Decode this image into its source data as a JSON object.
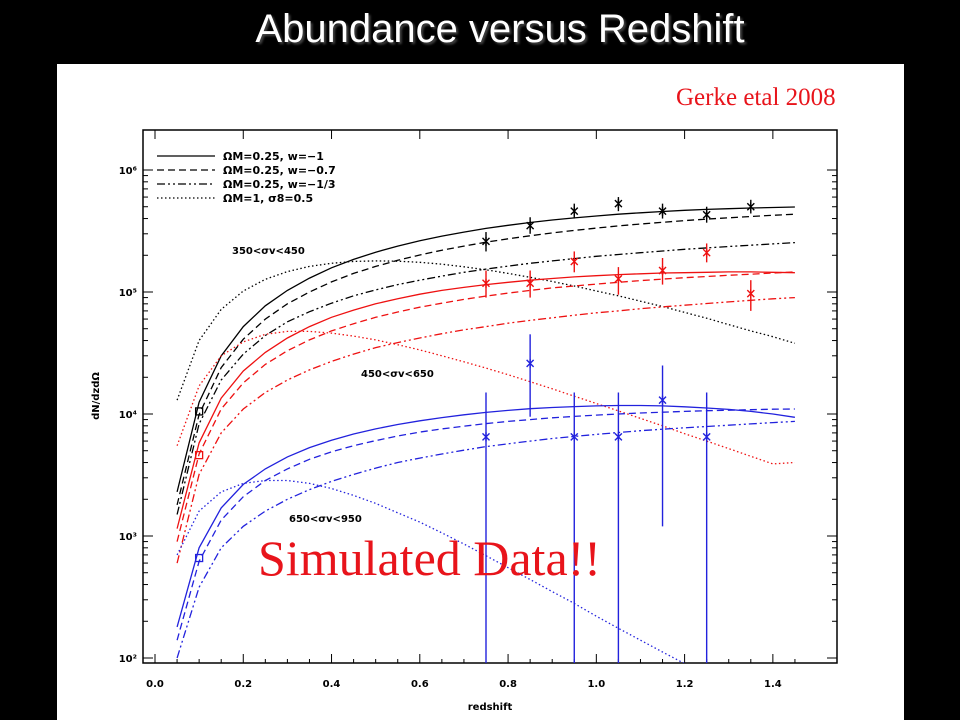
{
  "slide": {
    "title": "Abundance versus Redshift",
    "citation": "Gerke etal 2008",
    "note": "Simulated Data!!"
  },
  "chart_data": {
    "type": "line",
    "xlabel": "redshift",
    "ylabel": "dN/dzdΩ",
    "xlim": [
      0.0,
      1.5
    ],
    "ylim": [
      100,
      2000000
    ],
    "yscale": "log",
    "grid": false,
    "legend_position": "top-left",
    "x_ticks": [
      "0.0",
      "0.2",
      "0.4",
      "0.6",
      "0.8",
      "1.0",
      "1.2",
      "1.4"
    ],
    "y_ticks": [
      {
        "value": 100,
        "label": "10²"
      },
      {
        "value": 1000,
        "label": "10³"
      },
      {
        "value": 10000,
        "label": "10⁴"
      },
      {
        "value": 100000,
        "label": "10⁵"
      },
      {
        "value": 1000000,
        "label": "10⁶"
      }
    ],
    "legend": [
      {
        "dash": "solid",
        "label": "ΩM=0.25, w=−1"
      },
      {
        "dash": "dashed",
        "label": "ΩM=0.25, w=−0.7"
      },
      {
        "dash": "dashdotdot",
        "label": "ΩM=0.25, w=−1/3"
      },
      {
        "dash": "dotted",
        "label": "ΩM=1, σ8=0.5"
      }
    ],
    "x": [
      0.05,
      0.1,
      0.15,
      0.2,
      0.25,
      0.3,
      0.35,
      0.4,
      0.45,
      0.5,
      0.55,
      0.6,
      0.65,
      0.7,
      0.75,
      0.8,
      0.85,
      0.9,
      0.95,
      1.0,
      1.05,
      1.1,
      1.15,
      1.2,
      1.25,
      1.3,
      1.35,
      1.4,
      1.45
    ],
    "bins": [
      {
        "label": "350<σv<450",
        "color": "#000000",
        "curves": [
          {
            "dash": "solid",
            "y": [
              2300,
              12500,
              30000,
              52000,
              77000,
              103000,
              130000,
              158000,
              185000,
              212000,
              238000,
              263000,
              287000,
              310000,
              332000,
              352000,
              371000,
              389000,
              405000,
              420000,
              434000,
              446000,
              457000,
              467000,
              475000,
              482000,
              488000,
              493000,
              497000
            ]
          },
          {
            "dash": "dashed",
            "y": [
              1800,
              9900,
              24000,
              41000,
              60000,
              80000,
              100000,
              121000,
              142000,
              162000,
              182000,
              201000,
              220000,
              238000,
              256000,
              273000,
              289000,
              305000,
              320000,
              334000,
              348000,
              361000,
              373000,
              385000,
              396000,
              406000,
              416000,
              425000,
              434000
            ]
          },
          {
            "dash": "dashdotdot",
            "y": [
              1500,
              8300,
              19000,
              31000,
              44000,
              57000,
              69000,
              81000,
              93000,
              104000,
              115000,
              125000,
              135000,
              145000,
              154000,
              163000,
              172000,
              180000,
              188000,
              196000,
              203000,
              210000,
              217000,
              224000,
              230000,
              236000,
              242000,
              248000,
              254000
            ]
          },
          {
            "dash": "dotted",
            "y": [
              13000,
              40000,
              72000,
              102000,
              127000,
              147000,
              162000,
              172000,
              178000,
              180000,
              179000,
              175000,
              169000,
              161000,
              152000,
              142000,
              132000,
              122000,
              112000,
              102000,
              93000,
              84000,
              76000,
              68000,
              61000,
              54000,
              48000,
              43000,
              38000
            ]
          }
        ],
        "points": [
          {
            "x": 0.1,
            "y": 10500,
            "marker": "square"
          },
          {
            "x": 0.75,
            "y": 260000,
            "lo": 215000,
            "hi": 310000
          },
          {
            "x": 0.85,
            "y": 350000,
            "lo": 300000,
            "hi": 410000
          },
          {
            "x": 0.95,
            "y": 460000,
            "lo": 400000,
            "hi": 530000
          },
          {
            "x": 1.05,
            "y": 530000,
            "lo": 460000,
            "hi": 600000
          },
          {
            "x": 1.15,
            "y": 460000,
            "lo": 400000,
            "hi": 530000
          },
          {
            "x": 1.25,
            "y": 430000,
            "lo": 370000,
            "hi": 500000
          },
          {
            "x": 1.35,
            "y": 500000,
            "lo": 440000,
            "hi": 570000
          }
        ]
      },
      {
        "label": "450<σv<650",
        "color": "#ee1111",
        "curves": [
          {
            "dash": "solid",
            "y": [
              1150,
              5800,
              13500,
              22500,
              32000,
              42000,
              52000,
              62000,
              71000,
              80000,
              88000,
              96000,
              103000,
              109000,
              115000,
              120000,
              125000,
              129000,
              133000,
              136000,
              139000,
              141000,
              143000,
              144000,
              145000,
              146000,
              146000,
              145000,
              144000
            ]
          },
          {
            "dash": "dashed",
            "y": [
              900,
              4700,
              11000,
              18000,
              25500,
              33000,
              40500,
              48000,
              55000,
              62000,
              68500,
              75000,
              81000,
              87000,
              92500,
              98000,
              103000,
              108000,
              112000,
              116000,
              120000,
              124000,
              127500,
              131000,
              134000,
              137000,
              140000,
              143000,
              146000
            ]
          },
          {
            "dash": "dashdotdot",
            "y": [
              600,
              3200,
              7000,
              11000,
              15000,
              19000,
              23000,
              27000,
              31000,
              35000,
              38500,
              42000,
              45500,
              49000,
              52000,
              55500,
              58500,
              61500,
              64500,
              67500,
              70000,
              73000,
              75500,
              78000,
              80500,
              83000,
              85500,
              88000,
              90000
            ]
          },
          {
            "dash": "dotted",
            "y": [
              5500,
              17000,
              30000,
              39000,
              45000,
              47500,
              47500,
              46000,
              43500,
              40500,
              37000,
              33500,
              30000,
              26800,
              23800,
              21000,
              18400,
              16100,
              14000,
              12200,
              10600,
              9200,
              8000,
              6900,
              6000,
              5200,
              4500,
              3900,
              4000
            ]
          }
        ],
        "points": [
          {
            "x": 0.1,
            "y": 4600,
            "marker": "square"
          },
          {
            "x": 0.75,
            "y": 118000,
            "lo": 90000,
            "hi": 150000
          },
          {
            "x": 0.85,
            "y": 118000,
            "lo": 90000,
            "hi": 150000
          },
          {
            "x": 0.95,
            "y": 178000,
            "lo": 145000,
            "hi": 215000
          },
          {
            "x": 1.05,
            "y": 128000,
            "lo": 95000,
            "hi": 160000
          },
          {
            "x": 1.15,
            "y": 150000,
            "lo": 115000,
            "hi": 190000
          },
          {
            "x": 1.25,
            "y": 210000,
            "lo": 175000,
            "hi": 250000
          },
          {
            "x": 1.35,
            "y": 97000,
            "lo": 70000,
            "hi": 125000
          }
        ]
      },
      {
        "label": "650<σv<950",
        "color": "#2222dd",
        "curves": [
          {
            "dash": "solid",
            "y": [
              180,
              800,
              1700,
              2650,
              3550,
              4450,
              5300,
              6100,
              6850,
              7550,
              8200,
              8800,
              9350,
              9850,
              10300,
              10700,
              11050,
              11300,
              11500,
              11650,
              11750,
              11750,
              11650,
              11450,
              11200,
              10900,
              10500,
              10000,
              9400
            ]
          },
          {
            "dash": "dashed",
            "y": [
              140,
              620,
              1350,
              2100,
              2850,
              3550,
              4250,
              4900,
              5500,
              6050,
              6600,
              7100,
              7550,
              7950,
              8350,
              8700,
              9000,
              9300,
              9550,
              9800,
              10000,
              10200,
              10350,
              10500,
              10650,
              10750,
              10850,
              10950,
              11000
            ]
          },
          {
            "dash": "dashdotdot",
            "y": [
              100,
              380,
              800,
              1200,
              1600,
              2000,
              2400,
              2800,
              3200,
              3600,
              4000,
              4350,
              4700,
              5050,
              5400,
              5700,
              6000,
              6300,
              6550,
              6800,
              7050,
              7300,
              7500,
              7700,
              7900,
              8100,
              8300,
              8500,
              8700
            ]
          },
          {
            "dash": "dotted",
            "y": [
              700,
              1600,
              2300,
              2700,
              2850,
              2850,
              2700,
              2450,
              2150,
              1850,
              1550,
              1300,
              1060,
              860,
              690,
              550,
              440,
              350,
              280,
              220,
              175,
              140,
              112,
              90,
              80,
              80,
              80,
              80,
              80
            ]
          }
        ],
        "points": [
          {
            "x": 0.1,
            "y": 660,
            "marker": "square"
          },
          {
            "x": 0.75,
            "y": 6500,
            "lo": 60,
            "hi": 15000
          },
          {
            "x": 0.85,
            "y": 26000,
            "lo": 9500,
            "hi": 45000
          },
          {
            "x": 0.95,
            "y": 6500,
            "lo": 60,
            "hi": 15000
          },
          {
            "x": 1.05,
            "y": 6500,
            "lo": 60,
            "hi": 15000
          },
          {
            "x": 1.15,
            "y": 13000,
            "lo": 1200,
            "hi": 25000
          },
          {
            "x": 1.25,
            "y": 6500,
            "lo": 60,
            "hi": 15000
          }
        ]
      }
    ]
  }
}
